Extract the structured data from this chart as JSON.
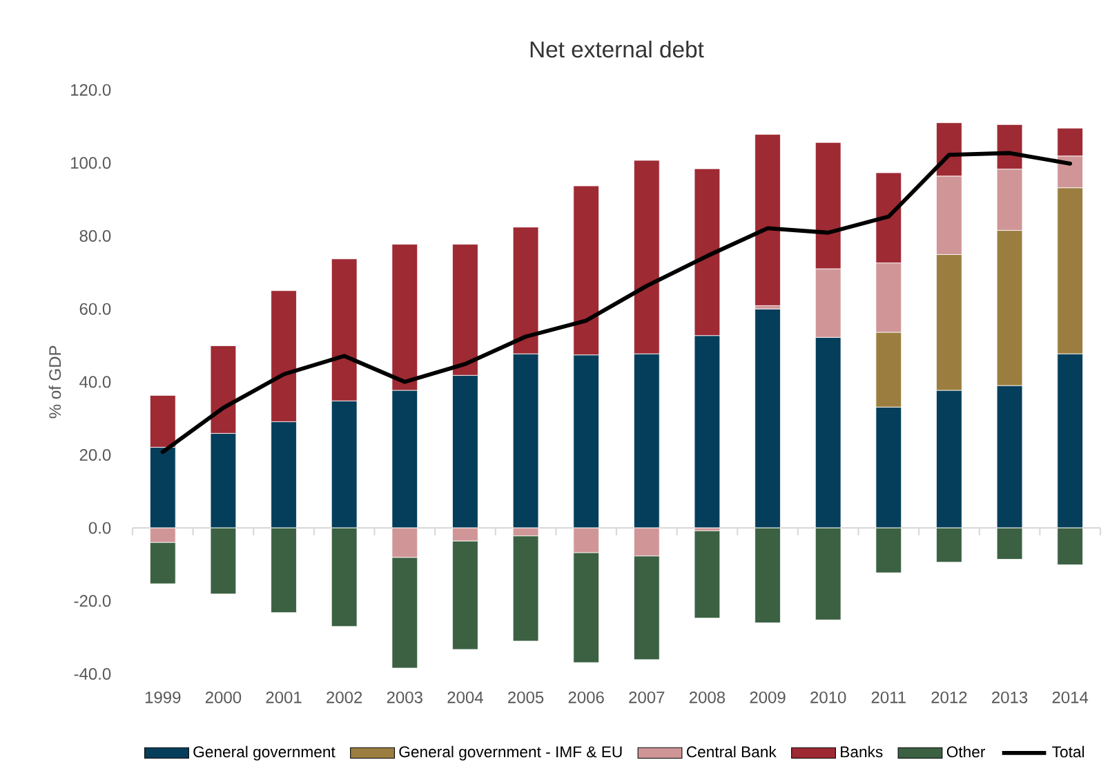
{
  "chart_data": {
    "type": "bar",
    "title": "Net external debt",
    "ylabel": "% of GDP",
    "stacked": true,
    "legend": "bottom",
    "categories": [
      "1999",
      "2000",
      "2001",
      "2002",
      "2003",
      "2004",
      "2005",
      "2006",
      "2007",
      "2008",
      "2009",
      "2010",
      "2011",
      "2012",
      "2013",
      "2014"
    ],
    "ylim": [
      -40,
      120
    ],
    "yticks": [
      {
        "value": -40,
        "label": "-40.0"
      },
      {
        "value": -20,
        "label": "-20.0"
      },
      {
        "value": 0,
        "label": "0.0"
      },
      {
        "value": 20,
        "label": "20.0"
      },
      {
        "value": 40,
        "label": "40.0"
      },
      {
        "value": 60,
        "label": "60.0"
      },
      {
        "value": 80,
        "label": "80.0"
      },
      {
        "value": 100,
        "label": "100.0"
      },
      {
        "value": 120,
        "label": "120.0"
      }
    ],
    "series": [
      {
        "name": "General government",
        "color": "#053e5a",
        "values": [
          22.1,
          25.9,
          29.1,
          34.8,
          37.7,
          41.8,
          47.7,
          47.4,
          47.7,
          52.7,
          60.0,
          52.2,
          33.1,
          37.7,
          39.0,
          47.7
        ]
      },
      {
        "name": "General government - IMF & EU",
        "color": "#9b7e3f",
        "values": [
          0,
          0,
          0,
          0,
          0,
          0,
          0,
          0,
          0,
          0,
          0,
          0,
          20.5,
          37.2,
          42.5,
          45.5
        ]
      },
      {
        "name": "Central Bank",
        "color": "#d09697",
        "values": [
          -4.0,
          0,
          0,
          0,
          -8.1,
          -3.6,
          -2.2,
          -6.8,
          -7.7,
          -0.8,
          0.9,
          18.8,
          19.0,
          21.5,
          16.8,
          8.7
        ]
      },
      {
        "name": "Banks",
        "color": "#9e2a33",
        "values": [
          14.2,
          24.0,
          35.9,
          38.9,
          40.0,
          35.9,
          34.7,
          46.3,
          53.0,
          45.7,
          46.9,
          34.6,
          24.7,
          14.6,
          12.2,
          7.6
        ]
      },
      {
        "name": "Other",
        "color": "#3b6142",
        "values": [
          -11.3,
          -18.1,
          -23.2,
          -27.0,
          -30.3,
          -29.7,
          -28.8,
          -30.1,
          -28.4,
          -23.9,
          -26.0,
          -25.2,
          -12.3,
          -9.4,
          -8.6,
          -10.1
        ]
      },
      {
        "name": "Total",
        "type": "line",
        "color": "#000000",
        "values": [
          20.8,
          32.9,
          42.1,
          47.1,
          40.0,
          44.9,
          52.4,
          56.8,
          66.3,
          74.5,
          82.1,
          80.9,
          85.3,
          102.2,
          102.7,
          99.8
        ]
      }
    ]
  }
}
